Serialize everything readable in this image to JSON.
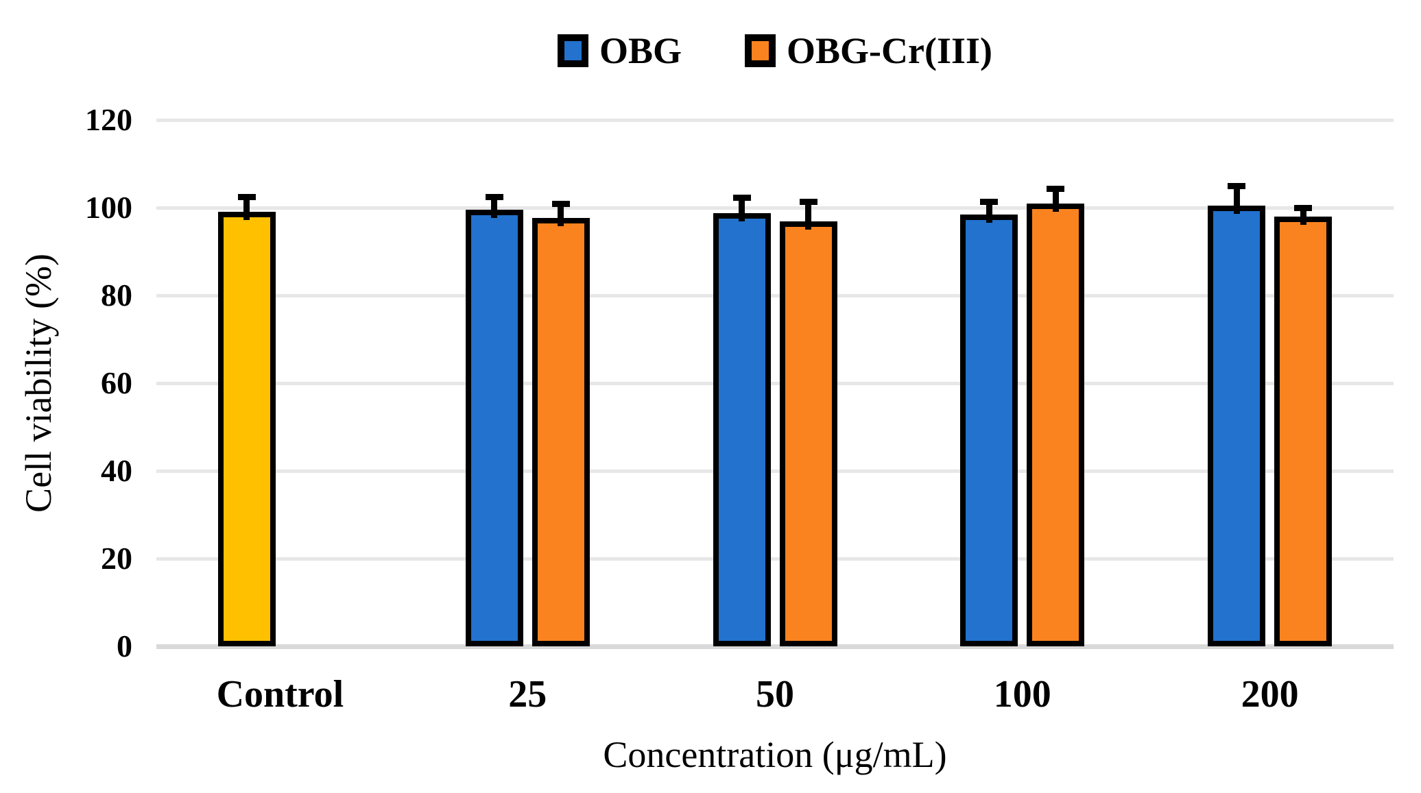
{
  "chart_data": {
    "type": "bar",
    "title": "",
    "xlabel": "Concentration (μg/mL)",
    "ylabel": "Cell viability (%)",
    "ylim": [
      0,
      120
    ],
    "yticks": [
      0,
      20,
      40,
      60,
      80,
      100,
      120
    ],
    "categories": [
      "Control",
      "25",
      "50",
      "100",
      "200"
    ],
    "series": [
      {
        "name": "OBG",
        "color": "#2272CE",
        "values": [
          99.0,
          99.5,
          98.8,
          98.5,
          100.5
        ],
        "errors": [
          4.2,
          3.6,
          4.2,
          3.6,
          5.2
        ],
        "point_colors": {
          "0": "#FFC000"
        }
      },
      {
        "name": "OBG-Cr(III)",
        "color": "#FB831F",
        "values": [
          null,
          97.7,
          96.8,
          100.9,
          98.0
        ],
        "errors": [
          null,
          3.9,
          5.3,
          4.1,
          2.7
        ]
      }
    ],
    "legend_position": "top-center",
    "grid": true
  },
  "palette": {
    "background": "#FFFFFF",
    "gridline": "#E7E7E7",
    "axis_line": "#D9D9D9",
    "bar_border": "#000000",
    "text": "#000000"
  }
}
